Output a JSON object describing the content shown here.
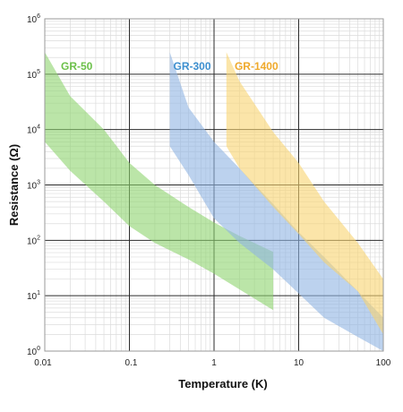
{
  "chart_data": {
    "type": "area",
    "xlabel": "Temperature (K)",
    "ylabel": "Resistance (Ω)",
    "xscale": "log",
    "yscale": "log",
    "xlim": [
      0.01,
      100
    ],
    "ylim": [
      1,
      1000000
    ],
    "grid": true,
    "x_ticks": [
      {
        "value": 0.01,
        "label": "0.01"
      },
      {
        "value": 0.1,
        "label": "0.1"
      },
      {
        "value": 1,
        "label": "1"
      },
      {
        "value": 10,
        "label": "10"
      },
      {
        "value": 100,
        "label": "100"
      }
    ],
    "y_ticks": [
      {
        "value": 1,
        "base": "10",
        "exp": "0"
      },
      {
        "value": 10,
        "base": "10",
        "exp": "1"
      },
      {
        "value": 100,
        "base": "10",
        "exp": "2"
      },
      {
        "value": 1000,
        "base": "10",
        "exp": "3"
      },
      {
        "value": 10000,
        "base": "10",
        "exp": "4"
      },
      {
        "value": 100000,
        "base": "10",
        "exp": "5"
      },
      {
        "value": 1000000,
        "base": "10",
        "exp": "6"
      }
    ],
    "series": [
      {
        "name": "GR-50",
        "color": "#8ed46e",
        "label_color": "#6cc04a",
        "label_at": {
          "x": 0.0155,
          "y": 120000
        },
        "upper": [
          [
            0.01,
            250000
          ],
          [
            0.02,
            40000
          ],
          [
            0.05,
            10000
          ],
          [
            0.1,
            2500
          ],
          [
            0.2,
            1000
          ],
          [
            0.5,
            400
          ],
          [
            1,
            210
          ],
          [
            2,
            120
          ],
          [
            5,
            62
          ]
        ],
        "lower": [
          [
            0.01,
            6000
          ],
          [
            0.02,
            1800
          ],
          [
            0.05,
            500
          ],
          [
            0.1,
            180
          ],
          [
            0.2,
            90
          ],
          [
            0.5,
            45
          ],
          [
            1,
            25
          ],
          [
            2,
            13
          ],
          [
            5,
            5.5
          ]
        ]
      },
      {
        "name": "GR-300",
        "color": "#8fb4e3",
        "label_color": "#3d8fcf",
        "label_at": {
          "x": 0.33,
          "y": 120000
        },
        "upper": [
          [
            0.3,
            250000
          ],
          [
            0.5,
            25000
          ],
          [
            1,
            6000
          ],
          [
            2,
            2000
          ],
          [
            5,
            450
          ],
          [
            10,
            140
          ],
          [
            20,
            50
          ],
          [
            50,
            12
          ],
          [
            100,
            4
          ]
        ],
        "lower": [
          [
            0.3,
            5000
          ],
          [
            0.5,
            1500
          ],
          [
            1,
            250
          ],
          [
            2,
            90
          ],
          [
            5,
            30
          ],
          [
            10,
            11
          ],
          [
            20,
            4
          ],
          [
            50,
            1.8
          ],
          [
            100,
            1
          ]
        ]
      },
      {
        "name": "GR-1400",
        "color": "#f9d370",
        "label_color": "#efa92b",
        "label_at": {
          "x": 1.75,
          "y": 120000
        },
        "upper": [
          [
            1.4,
            250000
          ],
          [
            2,
            75000
          ],
          [
            5,
            9000
          ],
          [
            10,
            2500
          ],
          [
            20,
            500
          ],
          [
            50,
            90
          ],
          [
            100,
            20
          ]
        ],
        "lower": [
          [
            1.4,
            5000
          ],
          [
            2,
            2000
          ],
          [
            5,
            400
          ],
          [
            10,
            130
          ],
          [
            20,
            40
          ],
          [
            50,
            12
          ],
          [
            100,
            2
          ]
        ]
      }
    ]
  }
}
